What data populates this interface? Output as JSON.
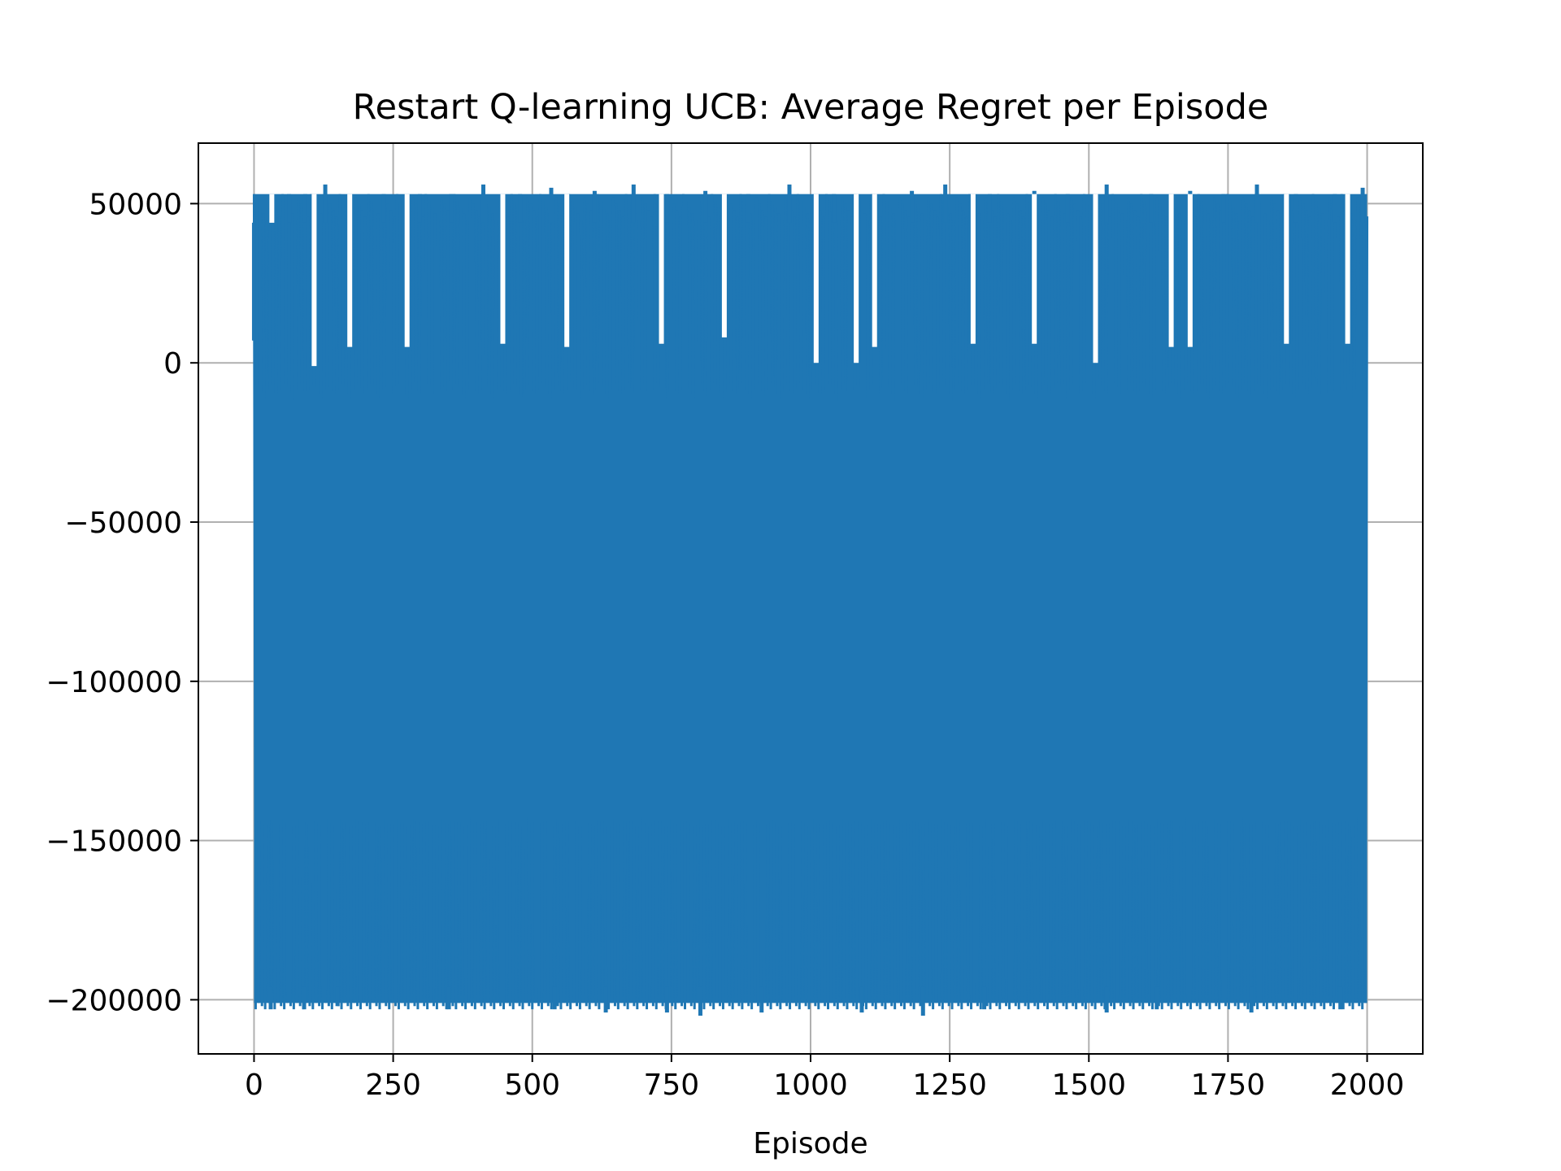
{
  "chart_data": {
    "type": "line",
    "title": "Restart Q-learning UCB: Average Regret per Episode",
    "xlabel": "Episode",
    "ylabel": "",
    "xlim": [
      -100,
      2100
    ],
    "ylim": [
      -217000,
      69000
    ],
    "xticks": [
      0,
      250,
      500,
      750,
      1000,
      1250,
      1500,
      1750,
      2000
    ],
    "xtick_labels": [
      "0",
      "250",
      "500",
      "750",
      "1000",
      "1250",
      "1500",
      "1750",
      "2000"
    ],
    "yticks": [
      50000,
      0,
      -50000,
      -100000,
      -150000,
      -200000
    ],
    "ytick_labels": [
      "50000",
      "0",
      "−50000",
      "−100000",
      "−150000",
      "−200000"
    ],
    "grid": true,
    "legend": "none",
    "series": [
      {
        "color": "#1f77b4",
        "x_range": [
          0,
          2000
        ],
        "band_max": 53000,
        "band_min": -201000,
        "peak_values": [
          {
            "x": 0,
            "y": 7000
          },
          {
            "x": 12,
            "y": 44000
          },
          {
            "x": 32,
            "y": 53000
          },
          {
            "x": 63,
            "y": 53000
          },
          {
            "x": 92,
            "y": 53000
          },
          {
            "x": 128,
            "y": 56000
          },
          {
            "x": 168,
            "y": 52000
          },
          {
            "x": 233,
            "y": 53000
          },
          {
            "x": 298,
            "y": 53000
          },
          {
            "x": 354,
            "y": 53000
          },
          {
            "x": 412,
            "y": 56000
          },
          {
            "x": 478,
            "y": 53000
          },
          {
            "x": 534,
            "y": 55000
          },
          {
            "x": 612,
            "y": 54000
          },
          {
            "x": 682,
            "y": 56000
          },
          {
            "x": 742,
            "y": 53000
          },
          {
            "x": 811,
            "y": 54000
          },
          {
            "x": 888,
            "y": 53000
          },
          {
            "x": 962,
            "y": 56000
          },
          {
            "x": 1042,
            "y": 53000
          },
          {
            "x": 1112,
            "y": 53000
          },
          {
            "x": 1182,
            "y": 54000
          },
          {
            "x": 1242,
            "y": 56000
          },
          {
            "x": 1322,
            "y": 53000
          },
          {
            "x": 1402,
            "y": 54000
          },
          {
            "x": 1462,
            "y": 53000
          },
          {
            "x": 1532,
            "y": 56000
          },
          {
            "x": 1612,
            "y": 53000
          },
          {
            "x": 1682,
            "y": 54000
          },
          {
            "x": 1742,
            "y": 53000
          },
          {
            "x": 1802,
            "y": 56000
          },
          {
            "x": 1872,
            "y": 53000
          },
          {
            "x": 1942,
            "y": 53000
          },
          {
            "x": 1992,
            "y": 55000
          }
        ],
        "trough_values": [
          {
            "x": 30,
            "y": -203000
          },
          {
            "x": 90,
            "y": -203000
          },
          {
            "x": 150,
            "y": -202000
          },
          {
            "x": 350,
            "y": -203000
          },
          {
            "x": 540,
            "y": -203000
          },
          {
            "x": 632,
            "y": -204000
          },
          {
            "x": 742,
            "y": -204000
          },
          {
            "x": 802,
            "y": -205000
          },
          {
            "x": 912,
            "y": -204000
          },
          {
            "x": 1092,
            "y": -204000
          },
          {
            "x": 1202,
            "y": -205000
          },
          {
            "x": 1312,
            "y": -203000
          },
          {
            "x": 1532,
            "y": -204000
          },
          {
            "x": 1622,
            "y": -203000
          },
          {
            "x": 1792,
            "y": -204000
          },
          {
            "x": 1952,
            "y": -203000
          }
        ],
        "gap_values": [
          {
            "x": 32,
            "y": 44000
          },
          {
            "x": 108,
            "y": -1000
          },
          {
            "x": 172,
            "y": 5000
          },
          {
            "x": 275,
            "y": 5000
          },
          {
            "x": 447,
            "y": 6000
          },
          {
            "x": 562,
            "y": 5000
          },
          {
            "x": 732,
            "y": 6000
          },
          {
            "x": 845,
            "y": 8000
          },
          {
            "x": 1010,
            "y": 0
          },
          {
            "x": 1082,
            "y": 0
          },
          {
            "x": 1115,
            "y": 5000
          },
          {
            "x": 1292,
            "y": 6000
          },
          {
            "x": 1402,
            "y": 6000
          },
          {
            "x": 1512,
            "y": 0
          },
          {
            "x": 1648,
            "y": 5000
          },
          {
            "x": 1682,
            "y": 5000
          },
          {
            "x": 1855,
            "y": 6000
          },
          {
            "x": 1965,
            "y": 6000
          }
        ]
      }
    ]
  }
}
